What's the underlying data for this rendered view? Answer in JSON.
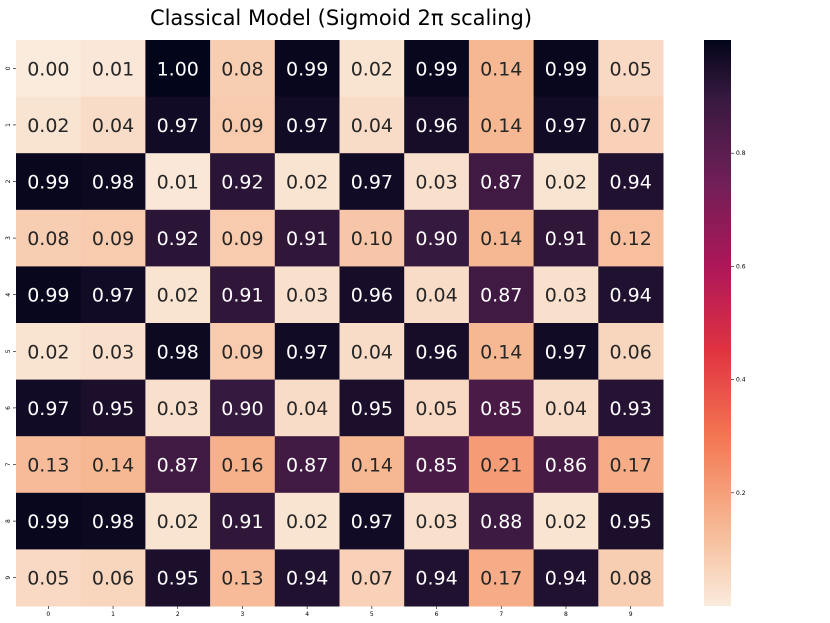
{
  "title": "Classical Model (Sigmoid 2π scaling)",
  "chart_data": {
    "type": "heatmap",
    "title": "Classical Model (Sigmoid 2π scaling)",
    "xlabel": "",
    "ylabel": "",
    "x_ticks": [
      "0",
      "1",
      "2",
      "3",
      "4",
      "5",
      "6",
      "7",
      "8",
      "9"
    ],
    "y_ticks": [
      "0",
      "1",
      "2",
      "3",
      "4",
      "5",
      "6",
      "7",
      "8",
      "9"
    ],
    "values": [
      [
        0.0,
        0.01,
        1.0,
        0.08,
        0.99,
        0.02,
        0.99,
        0.14,
        0.99,
        0.05
      ],
      [
        0.02,
        0.04,
        0.97,
        0.09,
        0.97,
        0.04,
        0.96,
        0.14,
        0.97,
        0.07
      ],
      [
        0.99,
        0.98,
        0.01,
        0.92,
        0.02,
        0.97,
        0.03,
        0.87,
        0.02,
        0.94
      ],
      [
        0.08,
        0.09,
        0.92,
        0.09,
        0.91,
        0.1,
        0.9,
        0.14,
        0.91,
        0.12
      ],
      [
        0.99,
        0.97,
        0.02,
        0.91,
        0.03,
        0.96,
        0.04,
        0.87,
        0.03,
        0.94
      ],
      [
        0.02,
        0.03,
        0.98,
        0.09,
        0.97,
        0.04,
        0.96,
        0.14,
        0.97,
        0.06
      ],
      [
        0.97,
        0.95,
        0.03,
        0.9,
        0.04,
        0.95,
        0.05,
        0.85,
        0.04,
        0.93
      ],
      [
        0.13,
        0.14,
        0.87,
        0.16,
        0.87,
        0.14,
        0.85,
        0.21,
        0.86,
        0.17
      ],
      [
        0.99,
        0.98,
        0.02,
        0.91,
        0.02,
        0.97,
        0.03,
        0.88,
        0.02,
        0.95
      ],
      [
        0.05,
        0.06,
        0.95,
        0.13,
        0.94,
        0.07,
        0.94,
        0.17,
        0.94,
        0.08
      ]
    ],
    "annotation_format": "0.00",
    "colormap": "rocket_r",
    "colorscale_range": [
      0.0,
      1.0
    ],
    "colorbar": {
      "position": "right",
      "ticks": [
        "0.2",
        "0.4",
        "0.6",
        "0.8"
      ],
      "tick_values": [
        0.2,
        0.4,
        0.6,
        0.8
      ]
    },
    "grid": false,
    "legend": "none"
  }
}
